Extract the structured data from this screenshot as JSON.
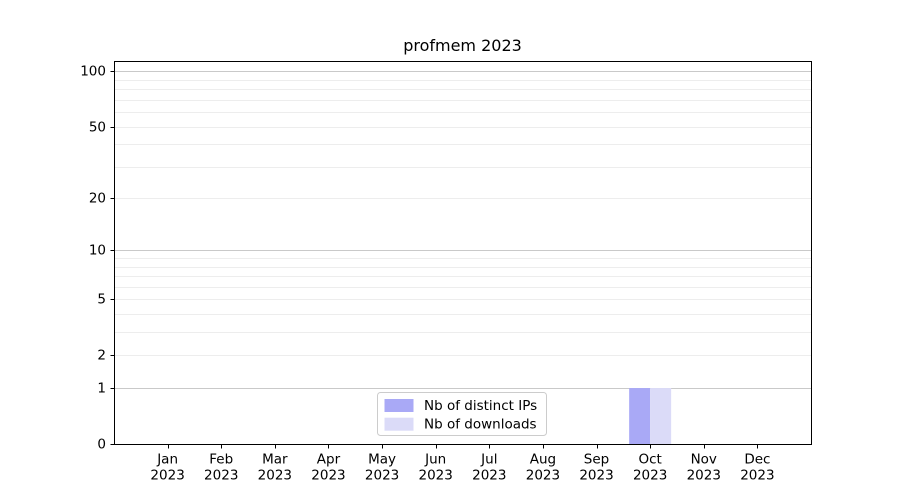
{
  "chart_data": {
    "type": "bar",
    "title": "profmem 2023",
    "categories": [
      {
        "month": "Jan",
        "year": "2023"
      },
      {
        "month": "Feb",
        "year": "2023"
      },
      {
        "month": "Mar",
        "year": "2023"
      },
      {
        "month": "Apr",
        "year": "2023"
      },
      {
        "month": "May",
        "year": "2023"
      },
      {
        "month": "Jun",
        "year": "2023"
      },
      {
        "month": "Jul",
        "year": "2023"
      },
      {
        "month": "Aug",
        "year": "2023"
      },
      {
        "month": "Sep",
        "year": "2023"
      },
      {
        "month": "Oct",
        "year": "2023"
      },
      {
        "month": "Nov",
        "year": "2023"
      },
      {
        "month": "Dec",
        "year": "2023"
      }
    ],
    "series": [
      {
        "name": "Nb of distinct IPs",
        "color": "#a9a9f6",
        "values": [
          0,
          0,
          0,
          0,
          0,
          0,
          0,
          0,
          0,
          1,
          0,
          0
        ]
      },
      {
        "name": "Nb of downloads",
        "color": "#dbdbf8",
        "values": [
          0,
          0,
          0,
          0,
          0,
          0,
          0,
          0,
          0,
          1,
          0,
          0
        ]
      }
    ],
    "xlabel": "",
    "ylabel": "",
    "yscale": "log1p",
    "yticks": [
      0,
      1,
      2,
      5,
      10,
      20,
      50,
      100
    ],
    "ylim": [
      0,
      114
    ],
    "grid": "horizontal",
    "grid_minor_values": [
      2,
      3,
      4,
      5,
      6,
      7,
      8,
      9,
      20,
      30,
      40,
      50,
      60,
      70,
      80,
      90
    ],
    "grid_major_values": [
      1,
      10,
      100
    ],
    "legend_position": "lower center",
    "colors": {
      "grid_minor": "#ededed",
      "grid_major": "#c9c9c9",
      "axis": "#000000",
      "legend_border": "#cccccc",
      "legend_background": "#ffffff",
      "plot_background": "#ffffff"
    }
  }
}
